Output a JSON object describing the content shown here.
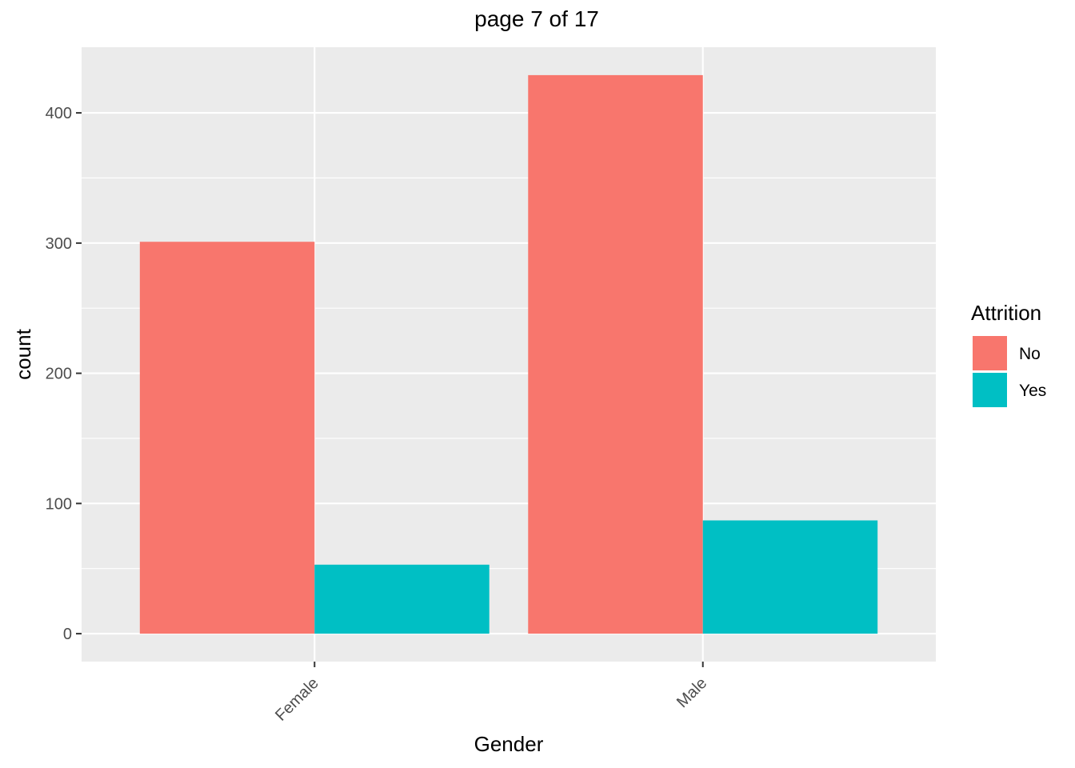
{
  "chart_data": {
    "type": "bar",
    "title": "page 7 of 17",
    "xlabel": "Gender",
    "ylabel": "count",
    "categories": [
      "Female",
      "Male"
    ],
    "series": [
      {
        "name": "No",
        "color": "#F8766D",
        "values": [
          301,
          429
        ]
      },
      {
        "name": "Yes",
        "color": "#00BFC4",
        "values": [
          53,
          87
        ]
      }
    ],
    "ylim": [
      -21.45,
      450.45
    ],
    "yticks": [
      0,
      100,
      200,
      300,
      400
    ],
    "grid": true,
    "legend": {
      "title": "Attrition",
      "position": "right"
    },
    "panel_background": "#EBEBEB",
    "grid_color": "#FFFFFF"
  }
}
